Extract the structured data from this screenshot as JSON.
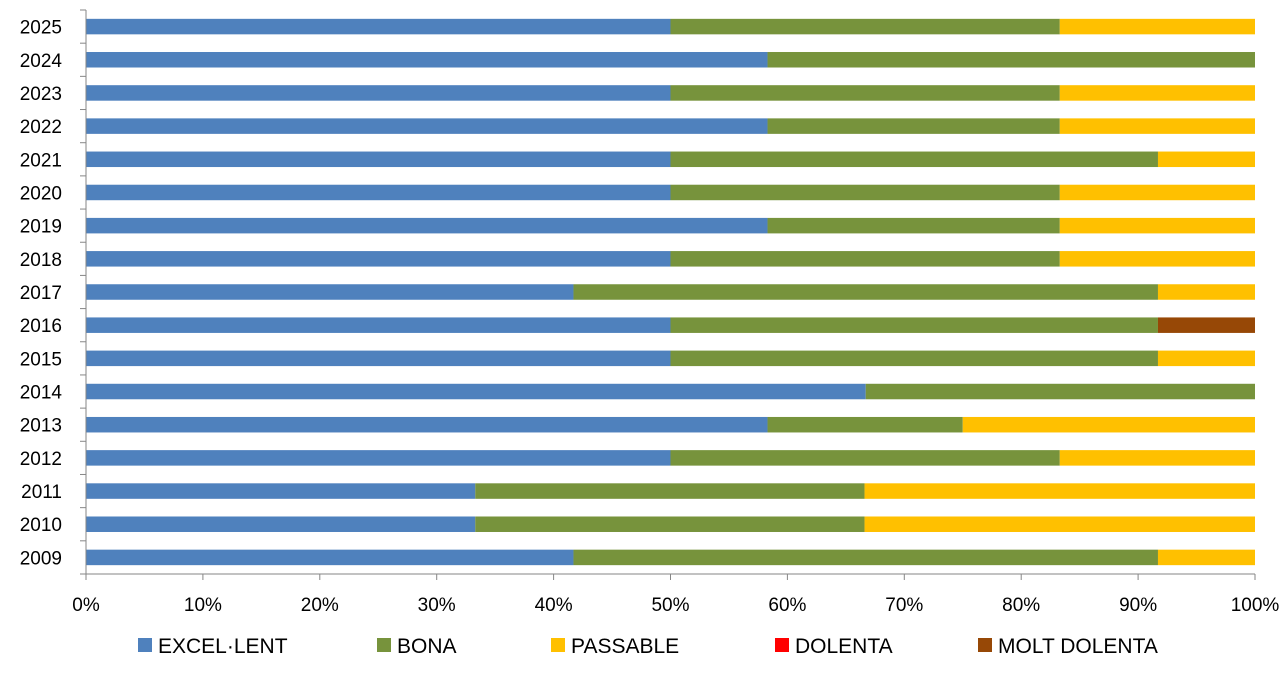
{
  "chart_data": {
    "type": "bar",
    "orientation": "horizontal",
    "stacked": "percent",
    "title": "",
    "xlabel": "",
    "ylabel": "",
    "xlim": [
      0,
      100
    ],
    "x_ticks": [
      "0%",
      "10%",
      "20%",
      "30%",
      "40%",
      "50%",
      "60%",
      "70%",
      "80%",
      "90%",
      "100%"
    ],
    "grid": false,
    "legend_position": "bottom",
    "categories": [
      "2009",
      "2010",
      "2011",
      "2012",
      "2013",
      "2014",
      "2015",
      "2016",
      "2017",
      "2018",
      "2019",
      "2020",
      "2021",
      "2022",
      "2023",
      "2024",
      "2025"
    ],
    "series": [
      {
        "name": "EXCEL·LENT",
        "color": "#4f81bd",
        "values": [
          41.7,
          33.3,
          33.3,
          50.0,
          58.3,
          66.7,
          50.0,
          50.0,
          41.7,
          50.0,
          58.3,
          50.0,
          50.0,
          58.3,
          50.0,
          58.3,
          50.0
        ]
      },
      {
        "name": "BONA",
        "color": "#77933c",
        "values": [
          50.0,
          33.3,
          33.3,
          33.3,
          16.7,
          33.3,
          41.7,
          41.7,
          50.0,
          33.3,
          25.0,
          33.3,
          41.7,
          25.0,
          33.3,
          41.7,
          33.3
        ]
      },
      {
        "name": "PASSABLE",
        "color": "#ffc000",
        "values": [
          8.3,
          33.4,
          33.4,
          16.7,
          25.0,
          0.0,
          8.3,
          0.0,
          8.3,
          16.7,
          16.7,
          16.7,
          8.3,
          16.7,
          16.7,
          0.0,
          16.7
        ]
      },
      {
        "name": "DOLENTA",
        "color": "#ff0000",
        "values": [
          0,
          0,
          0,
          0,
          0,
          0,
          0,
          0,
          0,
          0,
          0,
          0,
          0,
          0,
          0,
          0,
          0
        ]
      },
      {
        "name": "MOLT DOLENTA",
        "color": "#974806",
        "values": [
          0,
          0,
          0,
          0,
          0,
          0,
          0,
          8.3,
          0,
          0,
          0,
          0,
          0,
          0,
          0,
          0,
          0
        ]
      }
    ]
  }
}
